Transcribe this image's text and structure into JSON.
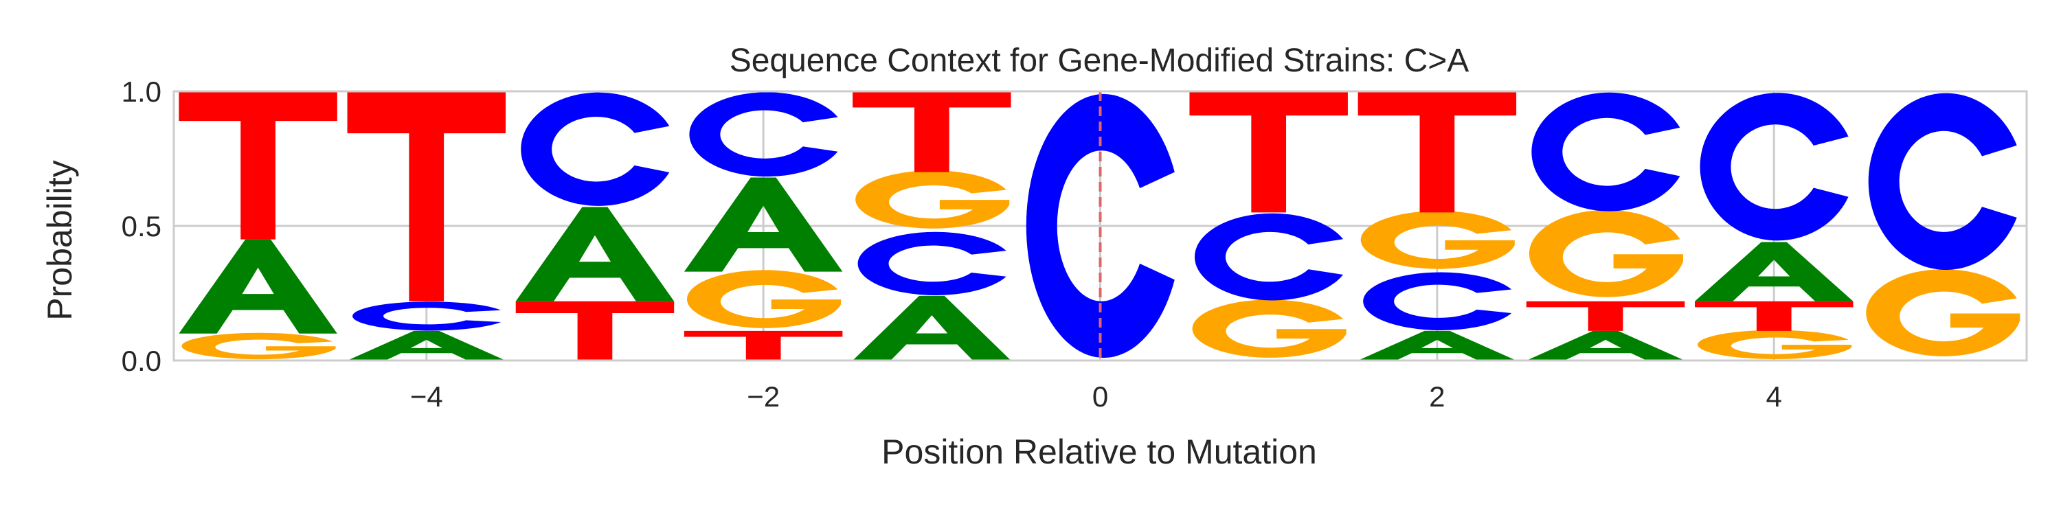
{
  "chart_data": {
    "type": "sequence-logo",
    "title": "Sequence Context for Gene-Modified Strains: C>A",
    "xlabel": "Position Relative to Mutation",
    "ylabel": "Probability",
    "xlim": [
      -5.5,
      5.5
    ],
    "ylim": [
      0,
      1
    ],
    "xticks": [
      -4,
      -2,
      0,
      2,
      4
    ],
    "yticks": [
      0.0,
      0.5,
      1.0
    ],
    "grid": true,
    "mutation_marker": {
      "x": 0,
      "style": "dashed",
      "color": "#e06666"
    },
    "colors": {
      "A": "#008000",
      "C": "#0000ff",
      "G": "#ffa500",
      "T": "#ff0000"
    },
    "positions": [
      {
        "x": -5,
        "stack": [
          {
            "base": "G",
            "p": 0.1
          },
          {
            "base": "A",
            "p": 0.35
          },
          {
            "base": "T",
            "p": 0.55
          }
        ]
      },
      {
        "x": -4,
        "stack": [
          {
            "base": "A",
            "p": 0.11
          },
          {
            "base": "C",
            "p": 0.11
          },
          {
            "base": "T",
            "p": 0.78
          }
        ]
      },
      {
        "x": -3,
        "stack": [
          {
            "base": "T",
            "p": 0.22
          },
          {
            "base": "A",
            "p": 0.35
          },
          {
            "base": "C",
            "p": 0.43
          }
        ]
      },
      {
        "x": -2,
        "stack": [
          {
            "base": "T",
            "p": 0.11
          },
          {
            "base": "G",
            "p": 0.22
          },
          {
            "base": "A",
            "p": 0.35
          },
          {
            "base": "C",
            "p": 0.32
          }
        ]
      },
      {
        "x": -1,
        "stack": [
          {
            "base": "A",
            "p": 0.24
          },
          {
            "base": "C",
            "p": 0.24
          },
          {
            "base": "G",
            "p": 0.22
          },
          {
            "base": "T",
            "p": 0.3
          }
        ]
      },
      {
        "x": 0,
        "stack": [
          {
            "base": "C",
            "p": 1.0
          }
        ]
      },
      {
        "x": 1,
        "stack": [
          {
            "base": "G",
            "p": 0.22
          },
          {
            "base": "C",
            "p": 0.33
          },
          {
            "base": "T",
            "p": 0.45
          }
        ]
      },
      {
        "x": 2,
        "stack": [
          {
            "base": "A",
            "p": 0.11
          },
          {
            "base": "C",
            "p": 0.22
          },
          {
            "base": "G",
            "p": 0.22
          },
          {
            "base": "T",
            "p": 0.45
          }
        ]
      },
      {
        "x": 3,
        "stack": [
          {
            "base": "A",
            "p": 0.11
          },
          {
            "base": "T",
            "p": 0.11
          },
          {
            "base": "G",
            "p": 0.33
          },
          {
            "base": "C",
            "p": 0.45
          }
        ]
      },
      {
        "x": 4,
        "stack": [
          {
            "base": "G",
            "p": 0.11
          },
          {
            "base": "T",
            "p": 0.11
          },
          {
            "base": "A",
            "p": 0.22
          },
          {
            "base": "C",
            "p": 0.56
          }
        ]
      },
      {
        "x": 5,
        "stack": [
          {
            "base": "G",
            "p": 0.33
          },
          {
            "base": "C",
            "p": 0.67
          }
        ]
      }
    ]
  }
}
